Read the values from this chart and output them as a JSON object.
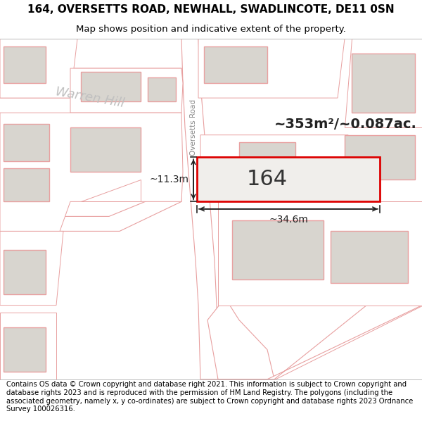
{
  "title_line1": "164, OVERSETTS ROAD, NEWHALL, SWADLINCOTE, DE11 0SN",
  "title_line2": "Map shows position and indicative extent of the property.",
  "footer_text": "Contains OS data © Crown copyright and database right 2021. This information is subject to Crown copyright and database rights 2023 and is reproduced with the permission of HM Land Registry. The polygons (including the associated geometry, namely x, y co-ordinates) are subject to Crown copyright and database rights 2023 Ordnance Survey 100026316.",
  "area_label": "~353m²/~0.087ac.",
  "plot_number": "164",
  "dim_width": "~34.6m",
  "dim_height": "~11.3m",
  "road_label": "Oversetts Road",
  "hill_label": "Warren Hill",
  "map_bg": "#ffffff",
  "plot_fill": "#f0eeeb",
  "plot_edge": "#dd0000",
  "building_fill": "#d8d5cf",
  "building_edge": "#e8a0a0",
  "road_fill": "#ffffff",
  "road_edge": "#e8a0a0",
  "parcel_edge": "#e8a0a0",
  "title_fontsize": 11,
  "subtitle_fontsize": 9.5,
  "footer_fontsize": 7.2,
  "label_color": "#888888",
  "dim_color": "#222222"
}
